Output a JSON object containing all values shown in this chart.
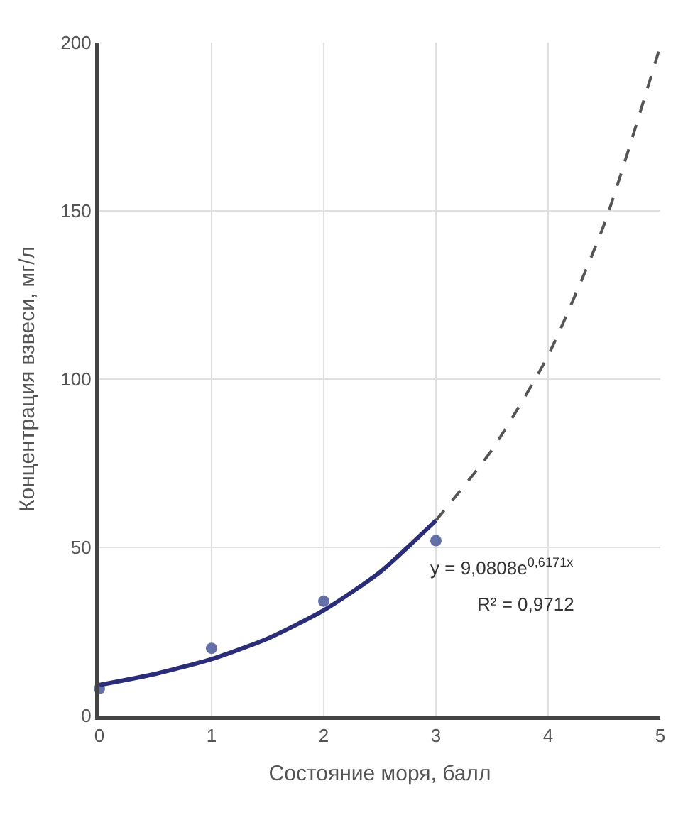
{
  "chart_data": {
    "type": "scatter",
    "xlabel": "Состояние моря, балл",
    "ylabel": "Концентрация взвеси, мг/л",
    "xlim": [
      0,
      5
    ],
    "xticks": [
      0,
      1,
      2,
      3,
      4,
      5
    ],
    "ylim": [
      0,
      200
    ],
    "yticks": [
      0,
      50,
      100,
      150,
      200
    ],
    "grid": true,
    "series": [
      {
        "color": "#6470a8",
        "marker": "circle",
        "x": [
          0,
          1,
          2,
          3
        ],
        "values": [
          8,
          20,
          34,
          52
        ]
      },
      {
        "type": "line",
        "color": "#2b2d78",
        "line_style": "solid",
        "marker": "none",
        "x": [
          0,
          0.5,
          1,
          1.5,
          2,
          2.5,
          3
        ],
        "values": [
          9.1,
          12.4,
          16.8,
          22.9,
          31.3,
          42.6,
          58
        ]
      },
      {
        "type": "line",
        "color": "#555555",
        "line_style": "dashed",
        "marker": "none",
        "x": [
          3,
          3.5,
          4,
          4.5,
          5
        ],
        "values": [
          58,
          79,
          107,
          146,
          199
        ]
      }
    ],
    "annotations": [
      "y = 9,0808e$^{0,6171x}$",
      "R² = 0,9712"
    ]
  }
}
